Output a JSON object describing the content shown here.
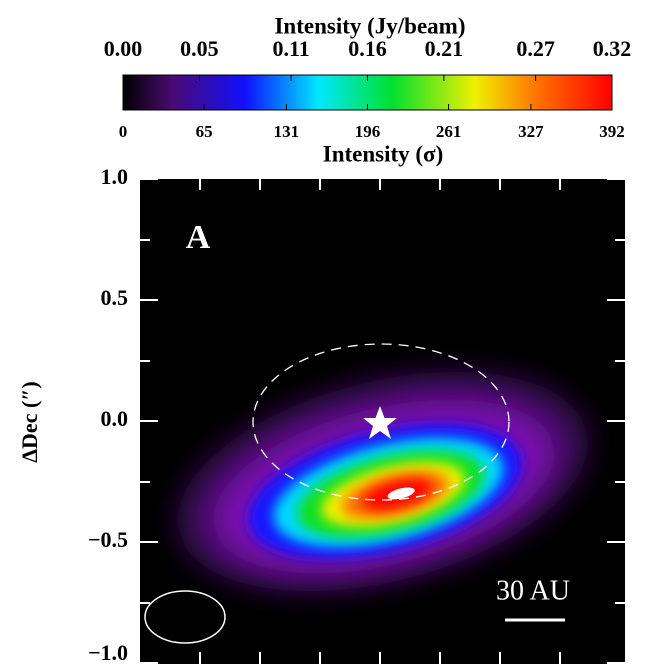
{
  "chart_data": {
    "type": "intensity-map",
    "colorbar_title": "Intensity (Jy/beam)",
    "colorbar_ticks": [
      {
        "value": 0,
        "label": "0.00"
      },
      0.05,
      0.11,
      0.16,
      0.21,
      0.27,
      0.32
    ],
    "colorbar_lim": [
      0,
      0.32
    ],
    "colorbar2_title": "Intensity (σ)",
    "colorbar2_ticks": [
      0,
      65,
      131,
      196,
      261,
      327,
      392
    ],
    "colorbar2_lim": [
      0,
      392
    ],
    "ylabel": "ΔDec (″)",
    "ylim": [
      -1,
      1
    ],
    "yticks": [
      {
        "value": 1,
        "label": "1.0"
      },
      0.5,
      {
        "value": 0,
        "label": "0.0"
      },
      {
        "value": -0.5,
        "label": "−0.5"
      },
      {
        "value": -1,
        "label": "−1.0"
      }
    ],
    "panel_label": "A",
    "scale_bar": "30 AU"
  }
}
